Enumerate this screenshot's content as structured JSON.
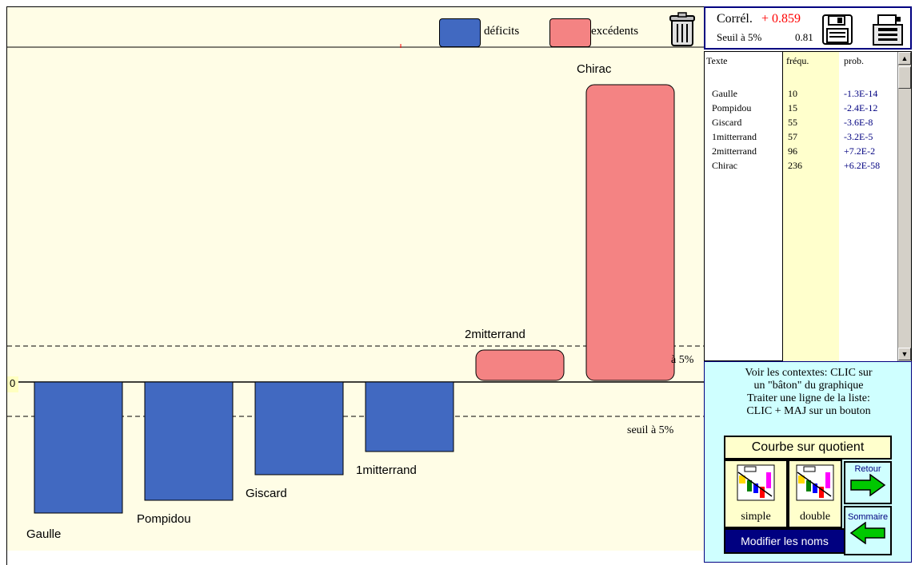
{
  "legend": {
    "deficit_label": "déficits",
    "excedent_label": "excédents",
    "deficit_color": "#4169c1",
    "excedent_color": "#f48383"
  },
  "chart_data": {
    "type": "bar",
    "categories": [
      "Gaulle",
      "Pompidou",
      "Giscard",
      "1mitterrand",
      "2mitterrand",
      "Chirac"
    ],
    "values": [
      -14,
      -12,
      -8,
      -5,
      2,
      58
    ],
    "zero_label": "0",
    "threshold_label_top": "seuil à 5%",
    "threshold_label_bottom": "seuil à 5%",
    "grid": false
  },
  "info": {
    "correl_label": "Corrél.",
    "correl_value": "+ 0.859",
    "seuil_label": "Seuil à 5%",
    "seuil_value": "0.81"
  },
  "list": {
    "headers": [
      "Texte",
      "fréqu.",
      "prob."
    ],
    "rows": [
      {
        "name": "Gaulle",
        "freq": "10",
        "prob": "-1.3E-14"
      },
      {
        "name": "Pompidou",
        "freq": "15",
        "prob": "-2.4E-12"
      },
      {
        "name": "Giscard",
        "freq": "55",
        "prob": "-3.6E-8"
      },
      {
        "name": "1mitterrand",
        "freq": "57",
        "prob": "-3.2E-5"
      },
      {
        "name": "2mitterrand",
        "freq": "96",
        "prob": "+7.2E-2"
      },
      {
        "name": "Chirac",
        "freq": "236",
        "prob": "+6.2E-58"
      }
    ]
  },
  "help": {
    "line1": "Voir les contextes: CLIC sur",
    "line2": "un \"bâton\" du graphique",
    "line3": "Traiter une ligne de la liste:",
    "line4": "CLIC + MAJ sur un bouton"
  },
  "buttons": {
    "courbe": "Courbe sur quotient",
    "simple": "simple",
    "double": "double",
    "retour": "Retour",
    "sommaire": "Sommaire",
    "modifier": "Modifier les noms"
  }
}
